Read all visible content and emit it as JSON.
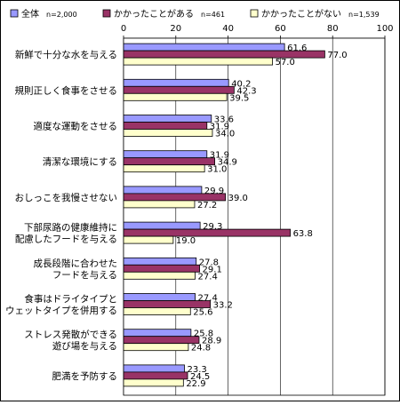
{
  "chart_data": {
    "type": "bar",
    "orientation": "horizontal",
    "categories": [
      "新鮮で十分な水を与える",
      "規則正しく食事をさせる",
      "適度な運動をさせる",
      "清潔な環境にする",
      "おしっこを我慢させない",
      "下部尿路の健康維持に\n配慮したフードを与える",
      "成長段階に合わせた\nフードを与える",
      "食事はドライタイプと\nウェットタイプを併用する",
      "ストレス発散ができる\n遊び場を与える",
      "肥満を予防する"
    ],
    "series": [
      {
        "name": "全体",
        "n_label": "n=2,000",
        "color": "#9999ff",
        "values": [
          61.6,
          40.2,
          33.6,
          31.9,
          29.9,
          29.3,
          27.8,
          27.4,
          25.8,
          23.3
        ]
      },
      {
        "name": "かかったことがある",
        "n_label": "n=461",
        "color": "#993366",
        "values": [
          77.0,
          42.3,
          31.9,
          34.9,
          39.0,
          63.8,
          29.1,
          33.2,
          28.9,
          24.5
        ]
      },
      {
        "name": "かかったことがない",
        "n_label": "n=1,539",
        "color": "#ffffcc",
        "values": [
          57.0,
          39.5,
          34.0,
          31.0,
          27.2,
          19.0,
          27.4,
          25.6,
          24.8,
          22.9
        ]
      }
    ],
    "xlim": [
      0,
      100
    ],
    "x_ticks": [
      0,
      20,
      40,
      60,
      80,
      100
    ],
    "grid": true,
    "legend_position": "top"
  }
}
